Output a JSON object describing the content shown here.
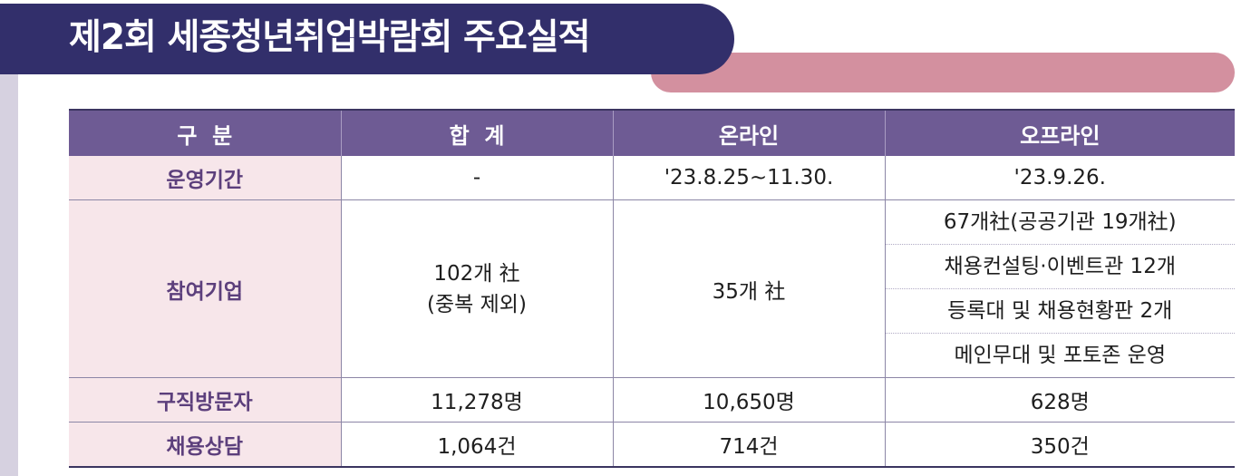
{
  "title": "제2회 세종청년취업박람회 주요실적",
  "headers": [
    "구  분",
    "합  계",
    "온라인",
    "오프라인"
  ],
  "rows": {
    "period": {
      "label": "운영기간",
      "total": "-",
      "online": "'23.8.25~11.30.",
      "offline": "'23.9.26."
    },
    "companies": {
      "label": "참여기업",
      "total_line1": "102개 社",
      "total_line2": "(중복 제외)",
      "online": "35개 社",
      "offline": [
        "67개社(공공기관 19개社)",
        "채용컨설팅·이벤트관 12개",
        "등록대 및 채용현황판 2개",
        "메인무대 및 포토존 운영"
      ]
    },
    "visitors": {
      "label": "구직방문자",
      "total": "11,278명",
      "online": "10,650명",
      "offline": "628명"
    },
    "consults": {
      "label": "채용상담",
      "total": "1,064건",
      "online": "714건",
      "offline": "350건"
    }
  },
  "colors": {
    "banner": "#322f6b",
    "accent_bar": "#d3909f",
    "header_bg": "#6e5b94",
    "rowhead_bg": "#f7e6ea"
  }
}
